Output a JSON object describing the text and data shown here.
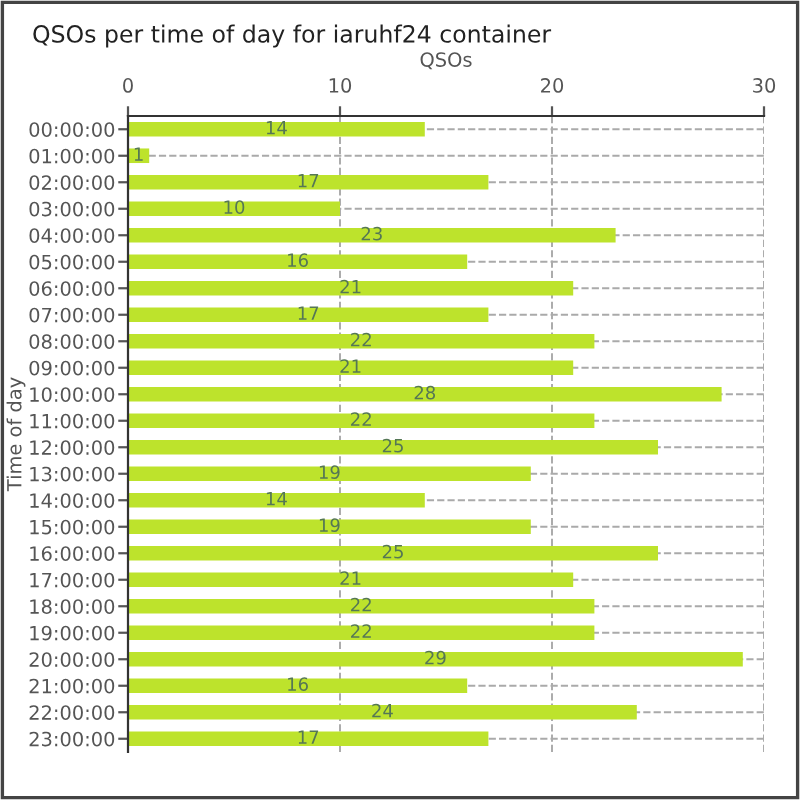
{
  "chart_data": {
    "type": "bar",
    "orientation": "horizontal",
    "title": "QSOs per time of day for iaruhf24 container",
    "xlabel": "QSOs",
    "ylabel": "Time of day",
    "categories": [
      "00:00:00",
      "01:00:00",
      "02:00:00",
      "03:00:00",
      "04:00:00",
      "05:00:00",
      "06:00:00",
      "07:00:00",
      "08:00:00",
      "09:00:00",
      "10:00:00",
      "11:00:00",
      "12:00:00",
      "13:00:00",
      "14:00:00",
      "15:00:00",
      "16:00:00",
      "17:00:00",
      "18:00:00",
      "19:00:00",
      "20:00:00",
      "21:00:00",
      "22:00:00",
      "23:00:00"
    ],
    "values": [
      14,
      1,
      17,
      10,
      23,
      16,
      21,
      17,
      22,
      21,
      28,
      22,
      25,
      19,
      14,
      19,
      25,
      21,
      22,
      22,
      29,
      16,
      24,
      17
    ],
    "color": "#bde32c",
    "xlim": [
      0,
      30
    ],
    "xticks": [
      0,
      10,
      20,
      30
    ],
    "grid": true,
    "data_labels": true
  }
}
